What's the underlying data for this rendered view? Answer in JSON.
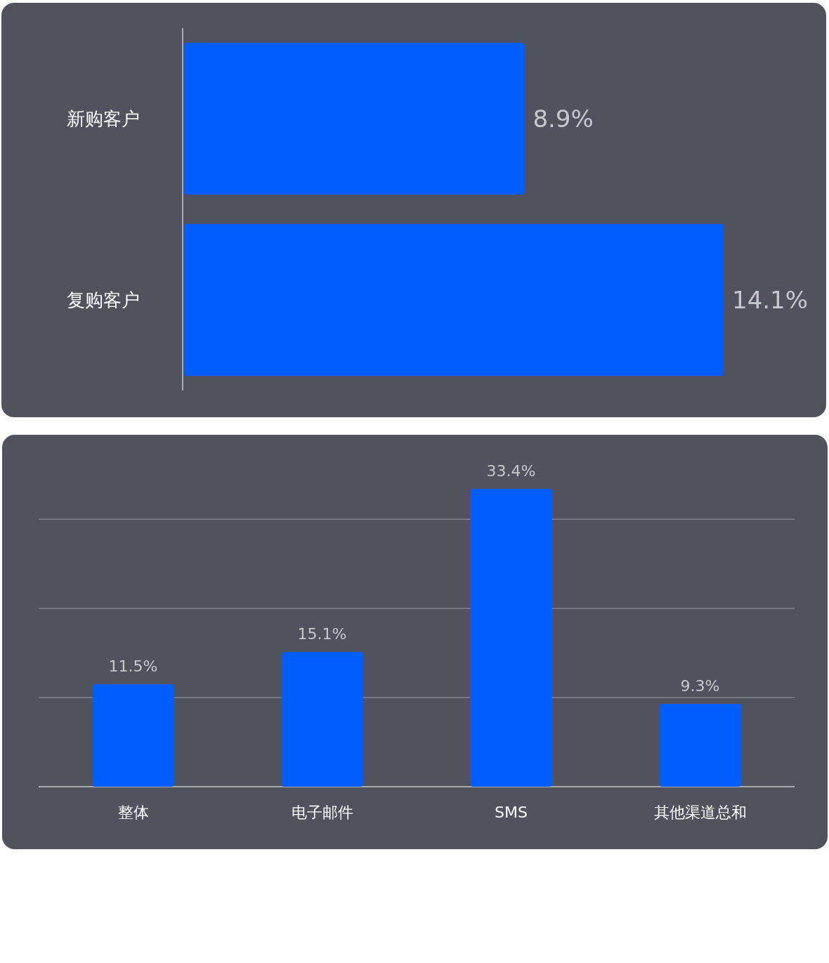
{
  "chart_data": [
    {
      "type": "bar",
      "orientation": "horizontal",
      "categories": [
        "新购客户",
        "复购客户"
      ],
      "values": [
        8.9,
        14.1
      ],
      "color": "#005eff",
      "value_labels": [
        "8.9%",
        "14.1%"
      ],
      "tick_labels": "y"
    },
    {
      "type": "bar",
      "categories": [
        "整体",
        "电子邮件",
        "SMS",
        "其他渠道总和"
      ],
      "values": [
        11.5,
        15.1,
        33.4,
        9.3
      ],
      "color": "#005eff",
      "yticks": [
        {
          "value": 0,
          "label": null
        },
        {
          "value": 10,
          "label": null
        },
        {
          "value": 20,
          "label": null
        },
        {
          "value": 30,
          "label": null
        }
      ],
      "grid": "y",
      "value_labels": [
        "11.5%",
        "15.1%",
        "33.4%",
        "9.3%"
      ],
      "tick_labels": "x"
    }
  ]
}
